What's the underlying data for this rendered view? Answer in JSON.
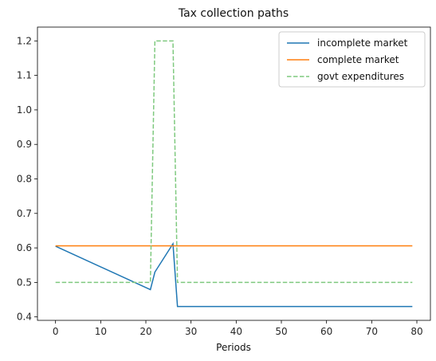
{
  "chart_data": {
    "type": "line",
    "title": "Tax collection paths",
    "xlabel": "Periods",
    "ylabel": "",
    "xlim": [
      -4,
      83
    ],
    "ylim": [
      0.39,
      1.24
    ],
    "xticks": [
      0,
      10,
      20,
      30,
      40,
      50,
      60,
      70,
      80
    ],
    "yticks": [
      0.4,
      0.5,
      0.6,
      0.7,
      0.8,
      0.9,
      1.0,
      1.1,
      1.2
    ],
    "grid": false,
    "legend_position": "top-right",
    "series": [
      {
        "name": "incomplete market",
        "color": "#1f77b4",
        "style": "solid",
        "points": [
          [
            0,
            0.605
          ],
          [
            21,
            0.479
          ],
          [
            22,
            0.53
          ],
          [
            26,
            0.612
          ],
          [
            27,
            0.43
          ],
          [
            79,
            0.43
          ]
        ]
      },
      {
        "name": "complete market",
        "color": "#ff7f0e",
        "style": "solid",
        "points": [
          [
            0,
            0.606
          ],
          [
            79,
            0.606
          ]
        ]
      },
      {
        "name": "govt expenditures",
        "color": "#7fc97f",
        "style": "dashed",
        "points": [
          [
            0,
            0.5
          ],
          [
            21,
            0.5
          ],
          [
            22,
            1.2
          ],
          [
            26,
            1.2
          ],
          [
            27,
            0.5
          ],
          [
            79,
            0.5
          ]
        ]
      }
    ]
  }
}
